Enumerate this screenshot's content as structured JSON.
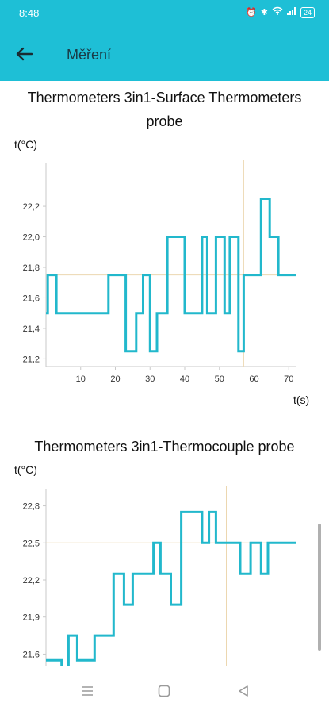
{
  "status": {
    "time": "8:48",
    "battery": "24"
  },
  "header": {
    "title": "Měření"
  },
  "chart_data": [
    {
      "type": "line",
      "title": "Thermometers 3in1-Surface Thermometers probe",
      "ylabel": "t(°C)",
      "xlabel": "t(s)",
      "xlim": [
        0,
        72
      ],
      "ylim": [
        21.15,
        22.45
      ],
      "xticks": [
        10,
        20,
        30,
        40,
        50,
        60,
        70
      ],
      "yticks": [
        21.2,
        21.4,
        21.6,
        21.8,
        22.0,
        22.2
      ],
      "ytick_labels": [
        "21,2",
        "21,4",
        "21,6",
        "21,8",
        "22,0",
        "22,2"
      ],
      "crosshair": {
        "x": 57,
        "y": 21.75
      },
      "series": [
        {
          "x": [
            0,
            0.5,
            0.5,
            3,
            3,
            18,
            18,
            23,
            23,
            26,
            26,
            28,
            28,
            30,
            30,
            32,
            32,
            35,
            35,
            40,
            40,
            45,
            45,
            46.5,
            46.5,
            49,
            49,
            51.5,
            51.5,
            53,
            53,
            55.5,
            55.5,
            57,
            57,
            62,
            62,
            64.5,
            64.5,
            67,
            67,
            72
          ],
          "y": [
            21.5,
            21.5,
            21.75,
            21.75,
            21.5,
            21.5,
            21.75,
            21.75,
            21.25,
            21.25,
            21.5,
            21.5,
            21.75,
            21.75,
            21.25,
            21.25,
            21.5,
            21.5,
            22.0,
            22.0,
            21.5,
            21.5,
            22.0,
            22.0,
            21.5,
            21.5,
            22.0,
            22.0,
            21.5,
            21.5,
            22.0,
            22.0,
            21.25,
            21.25,
            21.75,
            21.75,
            22.25,
            22.25,
            22.0,
            22.0,
            21.75,
            21.75
          ]
        }
      ]
    },
    {
      "type": "line",
      "title": "Thermometers 3in1-Thermocouple probe",
      "ylabel": "t(°C)",
      "xlim": [
        0,
        72
      ],
      "ylim": [
        21.5,
        22.9
      ],
      "yticks": [
        21.6,
        21.9,
        22.2,
        22.5,
        22.8
      ],
      "ytick_labels": [
        "21,6",
        "21,9",
        "22,2",
        "22,5",
        "22,8"
      ],
      "crosshair": {
        "x": 52,
        "y": 22.5
      },
      "series": [
        {
          "x": [
            0,
            4.5,
            4.5,
            6.5,
            6.5,
            9,
            9,
            14,
            14,
            19.5,
            19.5,
            22.5,
            22.5,
            25,
            25,
            31,
            31,
            33,
            33,
            36,
            36,
            39,
            39,
            45,
            45,
            47,
            47,
            49,
            49,
            56,
            56,
            59,
            59,
            62,
            62,
            64,
            64,
            70,
            70,
            72
          ],
          "y": [
            21.55,
            21.55,
            21.45,
            21.45,
            21.75,
            21.75,
            21.55,
            21.55,
            21.75,
            21.75,
            22.25,
            22.25,
            22.0,
            22.0,
            22.25,
            22.25,
            22.5,
            22.5,
            22.25,
            22.25,
            22.0,
            22.0,
            22.75,
            22.75,
            22.5,
            22.5,
            22.75,
            22.75,
            22.5,
            22.5,
            22.25,
            22.25,
            22.5,
            22.5,
            22.25,
            22.25,
            22.5,
            22.5,
            22.5,
            22.5
          ]
        }
      ]
    }
  ],
  "colors": {
    "accent": "#1ebfd6",
    "series": "#22b8cc",
    "crosshair": "#ecd7b0",
    "axis": "#c9c9c9"
  },
  "nav": {
    "recents_icon": "recents-icon",
    "home_icon": "home-icon",
    "back_icon": "back-icon"
  }
}
